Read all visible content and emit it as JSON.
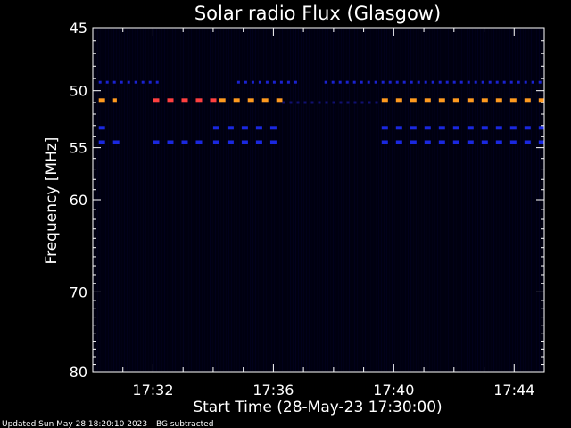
{
  "footer": {
    "updated": "Updated Sun May 28 18:20:10 2023",
    "note": "BG subtracted"
  },
  "chart_data": {
    "type": "heatmap",
    "title": "Solar radio Flux (Glasgow)",
    "xlabel": "Start Time (28-May-23 17:30:00)",
    "ylabel": "Frequency [MHz]",
    "x_unit": "minutes after 17:30:00",
    "xlim": [
      0,
      15
    ],
    "ylim": [
      45,
      80
    ],
    "y_scale": "log",
    "x_ticks": [
      {
        "value": 2,
        "label": "17:32"
      },
      {
        "value": 6,
        "label": "17:36"
      },
      {
        "value": 10,
        "label": "17:40"
      },
      {
        "value": 14,
        "label": "17:44"
      }
    ],
    "y_ticks": [
      {
        "value": 45,
        "label": "45"
      },
      {
        "value": 50,
        "label": "50"
      },
      {
        "value": 55,
        "label": "55"
      },
      {
        "value": 60,
        "label": "60"
      },
      {
        "value": 70,
        "label": "70"
      },
      {
        "value": 80,
        "label": "80"
      }
    ],
    "background_color": "#000010",
    "bands": [
      {
        "freq": 49.3,
        "segments": [
          [
            0.2,
            2.3
          ],
          [
            4.8,
            6.9
          ],
          [
            7.7,
            15
          ]
        ],
        "color": "#1a22d0",
        "dash": "thin"
      },
      {
        "freq": 50.8,
        "segments": [
          [
            0.2,
            0.8
          ]
        ],
        "color": "#ff9a1f",
        "dash": "thick"
      },
      {
        "freq": 50.8,
        "segments": [
          [
            2.0,
            4.2
          ]
        ],
        "color": "#ff4040",
        "dash": "thick"
      },
      {
        "freq": 50.8,
        "segments": [
          [
            4.2,
            6.3
          ]
        ],
        "color": "#ff9a1f",
        "dash": "thick"
      },
      {
        "freq": 50.8,
        "segments": [
          [
            9.6,
            15
          ]
        ],
        "color": "#ff9a1f",
        "dash": "thick"
      },
      {
        "freq": 51.0,
        "segments": [
          [
            6.3,
            9.6
          ]
        ],
        "color": "#101070",
        "dash": "thin"
      },
      {
        "freq": 53.2,
        "segments": [
          [
            0.2,
            0.6
          ],
          [
            4.0,
            6.3
          ],
          [
            9.6,
            15
          ]
        ],
        "color": "#1a28e0",
        "dash": "thick"
      },
      {
        "freq": 54.5,
        "segments": [
          [
            0.2,
            0.9
          ],
          [
            2.0,
            3.9
          ],
          [
            4.0,
            6.3
          ],
          [
            9.6,
            15
          ]
        ],
        "color": "#1a28e0",
        "dash": "thick"
      }
    ]
  }
}
